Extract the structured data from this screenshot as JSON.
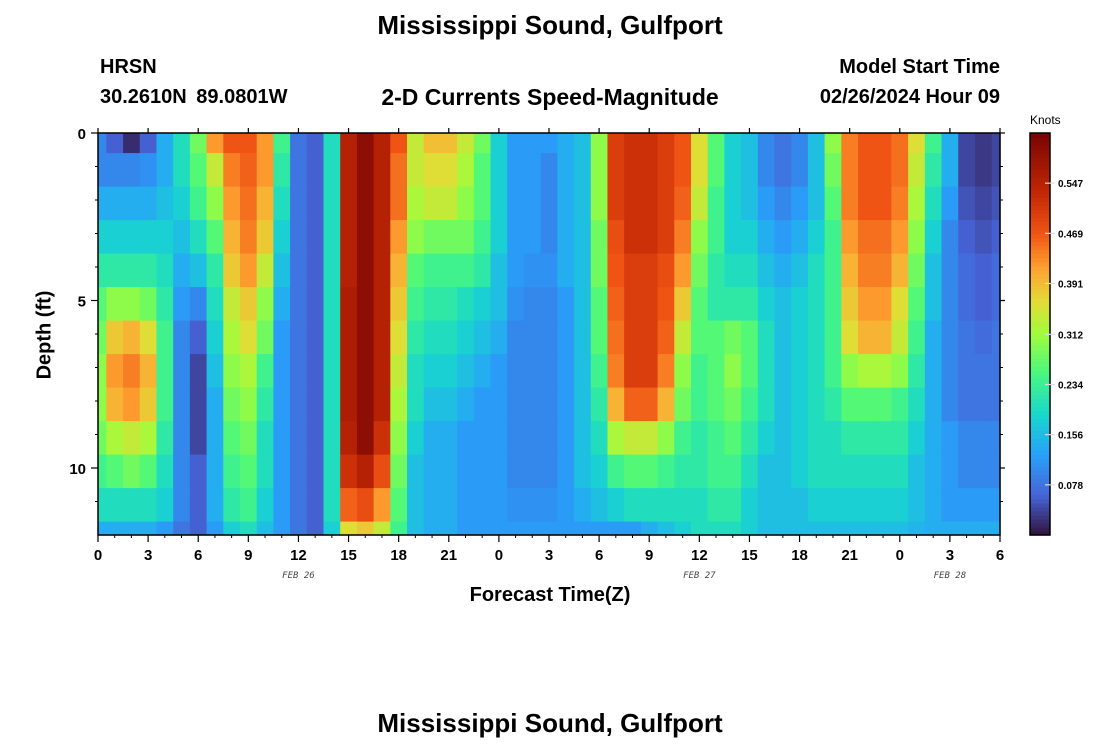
{
  "page": {
    "title_top": "Mississippi Sound, Gulfport",
    "title_bottom": "Mississippi Sound, Gulfport",
    "site_code": "HRSN",
    "site_coords": "30.2610N  89.0801W",
    "product": "2-D Currents Speed-Magnitude",
    "model_label": "Model Start Time",
    "model_time": "02/26/2024 Hour 09"
  },
  "chart_data": {
    "type": "heatmap",
    "title": "2-D Currents Speed-Magnitude",
    "xlabel": "Forecast Time(Z)",
    "ylabel": "Depth (ft)",
    "x_hours_range": [
      0,
      54
    ],
    "y_depth_range": [
      0,
      12
    ],
    "x_ticks": [
      {
        "hour": 0,
        "label": "0"
      },
      {
        "hour": 3,
        "label": "3"
      },
      {
        "hour": 6,
        "label": "6"
      },
      {
        "hour": 9,
        "label": "9"
      },
      {
        "hour": 12,
        "label": "12"
      },
      {
        "hour": 15,
        "label": "15"
      },
      {
        "hour": 18,
        "label": "18"
      },
      {
        "hour": 21,
        "label": "21"
      },
      {
        "hour": 24,
        "label": "0"
      },
      {
        "hour": 27,
        "label": "3"
      },
      {
        "hour": 30,
        "label": "6"
      },
      {
        "hour": 33,
        "label": "9"
      },
      {
        "hour": 36,
        "label": "12"
      },
      {
        "hour": 39,
        "label": "15"
      },
      {
        "hour": 42,
        "label": "18"
      },
      {
        "hour": 45,
        "label": "21"
      },
      {
        "hour": 48,
        "label": "0"
      },
      {
        "hour": 51,
        "label": "3"
      },
      {
        "hour": 54,
        "label": "6"
      }
    ],
    "y_ticks": [
      {
        "depth": 0,
        "label": "0"
      },
      {
        "depth": 5,
        "label": "5"
      },
      {
        "depth": 10,
        "label": "10"
      }
    ],
    "date_labels": [
      {
        "hour": 12,
        "label": "FEB 26"
      },
      {
        "hour": 36,
        "label": "FEB 27"
      },
      {
        "hour": 51,
        "label": "FEB 28"
      }
    ],
    "colorbar": {
      "title": "Knots",
      "min": 0.0,
      "max": 0.625,
      "ticks": [
        0.078,
        0.156,
        0.234,
        0.312,
        0.391,
        0.469,
        0.547
      ],
      "tick_labels": [
        "0.078",
        "0.156",
        "0.234",
        "0.312",
        "0.391",
        "0.469",
        "0.547"
      ]
    },
    "layers_top_depth_ft": [
      0,
      0.6,
      1.6,
      2.6,
      3.6,
      4.6,
      5.6,
      6.6,
      7.6,
      8.6,
      9.6,
      10.6,
      11.6
    ],
    "times_hours": [
      0,
      1,
      2,
      3,
      4,
      5,
      6,
      7,
      8,
      9,
      10,
      11,
      12,
      13,
      14,
      15,
      16,
      17,
      18,
      19,
      20,
      21,
      22,
      23,
      24,
      25,
      26,
      27,
      28,
      29,
      30,
      31,
      32,
      33,
      34,
      35,
      36,
      37,
      38,
      39,
      40,
      41,
      42,
      43,
      44,
      45,
      46,
      47,
      48,
      49,
      50,
      51,
      52,
      53,
      54
    ],
    "speed_knots": [
      [
        0.1,
        0.06,
        0.02,
        0.06,
        0.14,
        0.2,
        0.28,
        0.42,
        0.47,
        0.47,
        0.42,
        0.24,
        0.08,
        0.06,
        0.2,
        0.55,
        0.6,
        0.55,
        0.47,
        0.34,
        0.39,
        0.39,
        0.34,
        0.28,
        0.18,
        0.12,
        0.12,
        0.12,
        0.14,
        0.16,
        0.3,
        0.5,
        0.52,
        0.52,
        0.5,
        0.47,
        0.36,
        0.26,
        0.18,
        0.16,
        0.1,
        0.08,
        0.1,
        0.16,
        0.3,
        0.44,
        0.47,
        0.47,
        0.45,
        0.36,
        0.24,
        0.14,
        0.04,
        0.03,
        0.04
      ],
      [
        0.1,
        0.1,
        0.1,
        0.11,
        0.14,
        0.2,
        0.26,
        0.34,
        0.44,
        0.46,
        0.42,
        0.22,
        0.08,
        0.06,
        0.2,
        0.55,
        0.6,
        0.55,
        0.45,
        0.34,
        0.36,
        0.36,
        0.32,
        0.26,
        0.18,
        0.12,
        0.12,
        0.1,
        0.14,
        0.16,
        0.3,
        0.5,
        0.52,
        0.52,
        0.5,
        0.47,
        0.36,
        0.26,
        0.18,
        0.16,
        0.1,
        0.08,
        0.1,
        0.16,
        0.28,
        0.44,
        0.47,
        0.47,
        0.45,
        0.34,
        0.22,
        0.14,
        0.04,
        0.03,
        0.04
      ],
      [
        0.14,
        0.14,
        0.14,
        0.14,
        0.16,
        0.18,
        0.24,
        0.3,
        0.42,
        0.45,
        0.4,
        0.2,
        0.08,
        0.06,
        0.2,
        0.55,
        0.6,
        0.55,
        0.45,
        0.32,
        0.34,
        0.34,
        0.3,
        0.26,
        0.18,
        0.12,
        0.12,
        0.1,
        0.14,
        0.16,
        0.3,
        0.5,
        0.52,
        0.52,
        0.5,
        0.46,
        0.34,
        0.24,
        0.18,
        0.16,
        0.12,
        0.1,
        0.12,
        0.16,
        0.26,
        0.44,
        0.47,
        0.47,
        0.44,
        0.32,
        0.2,
        0.12,
        0.05,
        0.04,
        0.05
      ],
      [
        0.18,
        0.18,
        0.18,
        0.18,
        0.18,
        0.16,
        0.2,
        0.26,
        0.4,
        0.44,
        0.38,
        0.18,
        0.08,
        0.06,
        0.2,
        0.55,
        0.6,
        0.55,
        0.42,
        0.3,
        0.28,
        0.28,
        0.28,
        0.24,
        0.18,
        0.12,
        0.12,
        0.1,
        0.14,
        0.16,
        0.28,
        0.48,
        0.52,
        0.52,
        0.5,
        0.44,
        0.3,
        0.24,
        0.18,
        0.18,
        0.14,
        0.12,
        0.14,
        0.18,
        0.24,
        0.42,
        0.45,
        0.45,
        0.42,
        0.3,
        0.18,
        0.1,
        0.06,
        0.05,
        0.06
      ],
      [
        0.22,
        0.22,
        0.22,
        0.22,
        0.2,
        0.14,
        0.16,
        0.22,
        0.38,
        0.42,
        0.34,
        0.16,
        0.08,
        0.06,
        0.2,
        0.55,
        0.6,
        0.55,
        0.4,
        0.26,
        0.24,
        0.24,
        0.24,
        0.22,
        0.16,
        0.12,
        0.11,
        0.11,
        0.14,
        0.16,
        0.28,
        0.47,
        0.5,
        0.5,
        0.48,
        0.42,
        0.28,
        0.22,
        0.2,
        0.2,
        0.16,
        0.14,
        0.16,
        0.2,
        0.24,
        0.4,
        0.44,
        0.44,
        0.4,
        0.28,
        0.16,
        0.1,
        0.07,
        0.06,
        0.07
      ],
      [
        0.26,
        0.3,
        0.3,
        0.28,
        0.22,
        0.12,
        0.1,
        0.2,
        0.34,
        0.38,
        0.3,
        0.14,
        0.08,
        0.06,
        0.2,
        0.56,
        0.6,
        0.55,
        0.38,
        0.24,
        0.22,
        0.22,
        0.2,
        0.18,
        0.16,
        0.11,
        0.1,
        0.1,
        0.12,
        0.16,
        0.26,
        0.46,
        0.5,
        0.5,
        0.47,
        0.38,
        0.26,
        0.22,
        0.22,
        0.22,
        0.18,
        0.16,
        0.18,
        0.2,
        0.24,
        0.38,
        0.42,
        0.42,
        0.36,
        0.26,
        0.16,
        0.1,
        0.07,
        0.06,
        0.07
      ],
      [
        0.28,
        0.38,
        0.4,
        0.36,
        0.24,
        0.1,
        0.06,
        0.18,
        0.32,
        0.36,
        0.28,
        0.12,
        0.08,
        0.06,
        0.2,
        0.56,
        0.6,
        0.55,
        0.36,
        0.22,
        0.2,
        0.2,
        0.18,
        0.16,
        0.14,
        0.1,
        0.1,
        0.1,
        0.12,
        0.16,
        0.26,
        0.45,
        0.5,
        0.5,
        0.46,
        0.34,
        0.26,
        0.26,
        0.28,
        0.26,
        0.2,
        0.16,
        0.18,
        0.2,
        0.24,
        0.36,
        0.4,
        0.4,
        0.34,
        0.24,
        0.14,
        0.1,
        0.08,
        0.07,
        0.08
      ],
      [
        0.3,
        0.42,
        0.44,
        0.4,
        0.24,
        0.1,
        0.04,
        0.16,
        0.3,
        0.32,
        0.24,
        0.12,
        0.08,
        0.06,
        0.2,
        0.56,
        0.6,
        0.55,
        0.34,
        0.2,
        0.18,
        0.18,
        0.16,
        0.14,
        0.12,
        0.1,
        0.1,
        0.1,
        0.12,
        0.16,
        0.24,
        0.44,
        0.5,
        0.5,
        0.44,
        0.3,
        0.24,
        0.26,
        0.3,
        0.26,
        0.2,
        0.16,
        0.18,
        0.2,
        0.24,
        0.3,
        0.32,
        0.32,
        0.3,
        0.22,
        0.14,
        0.1,
        0.08,
        0.08,
        0.08
      ],
      [
        0.3,
        0.4,
        0.42,
        0.38,
        0.24,
        0.1,
        0.04,
        0.14,
        0.28,
        0.3,
        0.22,
        0.12,
        0.08,
        0.06,
        0.2,
        0.56,
        0.6,
        0.55,
        0.32,
        0.2,
        0.16,
        0.16,
        0.14,
        0.12,
        0.12,
        0.1,
        0.1,
        0.1,
        0.12,
        0.16,
        0.22,
        0.4,
        0.46,
        0.46,
        0.4,
        0.28,
        0.24,
        0.26,
        0.28,
        0.24,
        0.2,
        0.16,
        0.18,
        0.2,
        0.22,
        0.26,
        0.26,
        0.26,
        0.24,
        0.2,
        0.14,
        0.1,
        0.08,
        0.08,
        0.08
      ],
      [
        0.28,
        0.32,
        0.34,
        0.32,
        0.22,
        0.1,
        0.04,
        0.14,
        0.26,
        0.28,
        0.2,
        0.12,
        0.08,
        0.06,
        0.2,
        0.55,
        0.6,
        0.52,
        0.3,
        0.18,
        0.14,
        0.14,
        0.12,
        0.12,
        0.12,
        0.1,
        0.1,
        0.1,
        0.12,
        0.16,
        0.2,
        0.32,
        0.34,
        0.34,
        0.3,
        0.24,
        0.22,
        0.24,
        0.26,
        0.22,
        0.18,
        0.16,
        0.18,
        0.2,
        0.2,
        0.22,
        0.22,
        0.22,
        0.22,
        0.18,
        0.14,
        0.12,
        0.1,
        0.1,
        0.1
      ],
      [
        0.24,
        0.26,
        0.28,
        0.26,
        0.2,
        0.1,
        0.06,
        0.14,
        0.24,
        0.26,
        0.2,
        0.12,
        0.08,
        0.06,
        0.2,
        0.52,
        0.55,
        0.48,
        0.28,
        0.16,
        0.14,
        0.14,
        0.12,
        0.12,
        0.12,
        0.1,
        0.1,
        0.1,
        0.12,
        0.16,
        0.18,
        0.24,
        0.26,
        0.26,
        0.24,
        0.22,
        0.22,
        0.24,
        0.24,
        0.2,
        0.16,
        0.16,
        0.18,
        0.2,
        0.2,
        0.2,
        0.2,
        0.2,
        0.2,
        0.16,
        0.14,
        0.12,
        0.1,
        0.1,
        0.1
      ],
      [
        0.2,
        0.2,
        0.2,
        0.2,
        0.18,
        0.1,
        0.06,
        0.14,
        0.22,
        0.24,
        0.18,
        0.12,
        0.08,
        0.06,
        0.2,
        0.46,
        0.48,
        0.42,
        0.26,
        0.16,
        0.14,
        0.14,
        0.12,
        0.12,
        0.12,
        0.11,
        0.11,
        0.11,
        0.12,
        0.14,
        0.16,
        0.18,
        0.2,
        0.2,
        0.2,
        0.2,
        0.2,
        0.22,
        0.22,
        0.18,
        0.16,
        0.16,
        0.16,
        0.18,
        0.18,
        0.18,
        0.18,
        0.18,
        0.18,
        0.16,
        0.14,
        0.12,
        0.12,
        0.12,
        0.12
      ],
      [
        0.14,
        0.14,
        0.14,
        0.14,
        0.12,
        0.08,
        0.06,
        0.12,
        0.18,
        0.2,
        0.16,
        0.12,
        0.08,
        0.06,
        0.18,
        0.36,
        0.38,
        0.34,
        0.24,
        0.16,
        0.14,
        0.14,
        0.12,
        0.12,
        0.12,
        0.12,
        0.12,
        0.12,
        0.12,
        0.12,
        0.12,
        0.12,
        0.12,
        0.14,
        0.16,
        0.18,
        0.2,
        0.2,
        0.2,
        0.18,
        0.16,
        0.16,
        0.16,
        0.16,
        0.16,
        0.16,
        0.16,
        0.16,
        0.16,
        0.15,
        0.14,
        0.14,
        0.14,
        0.14,
        0.14
      ]
    ]
  }
}
